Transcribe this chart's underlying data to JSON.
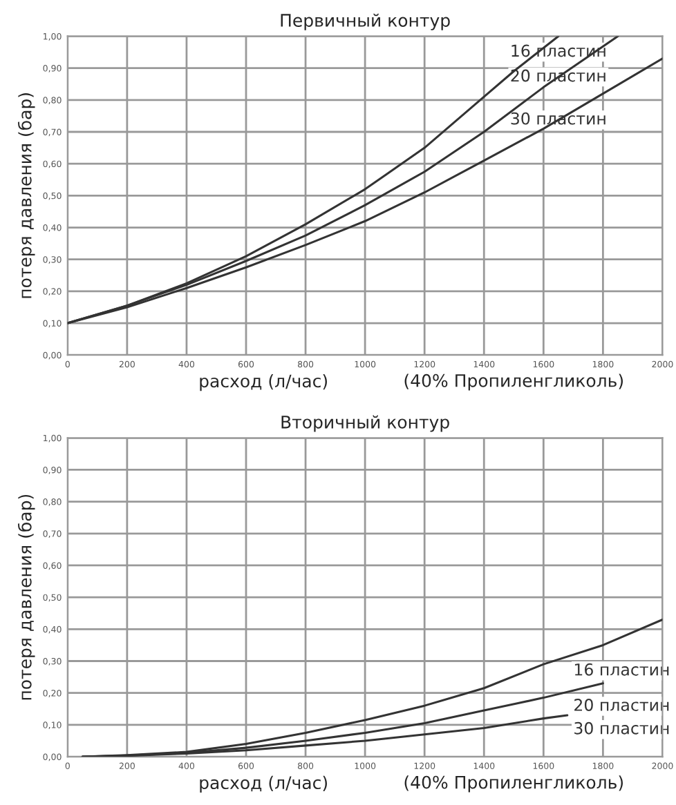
{
  "chart_data": [
    {
      "type": "line",
      "title": "Первичный контур",
      "xlabel": "расход (л/час)",
      "ylabel": "потеря давления (бар)",
      "annotations": [
        "(40% Пропиленгликоль)"
      ],
      "series": [
        {
          "name": "16 пластин",
          "color": "#333333",
          "x": [
            0,
            200,
            400,
            600,
            800,
            1000,
            1200,
            1400,
            1500,
            1650
          ],
          "values": [
            0.1,
            0.155,
            0.225,
            0.31,
            0.41,
            0.52,
            0.65,
            0.81,
            0.89,
            1.0
          ]
        },
        {
          "name": "20 пластин",
          "color": "#333333",
          "x": [
            0,
            200,
            400,
            600,
            800,
            1000,
            1200,
            1400,
            1600,
            1850
          ],
          "values": [
            0.1,
            0.155,
            0.22,
            0.295,
            0.375,
            0.47,
            0.575,
            0.7,
            0.84,
            1.0
          ]
        },
        {
          "name": "30 пластин",
          "color": "#333333",
          "x": [
            0,
            200,
            400,
            600,
            800,
            1000,
            1200,
            1400,
            1600,
            1800,
            2000
          ],
          "values": [
            0.1,
            0.15,
            0.21,
            0.275,
            0.345,
            0.42,
            0.51,
            0.61,
            0.71,
            0.82,
            0.93
          ]
        }
      ],
      "xlim": [
        0,
        2000
      ],
      "xticks": [
        0,
        200,
        400,
        600,
        800,
        1000,
        1200,
        1400,
        1600,
        1800,
        2000
      ],
      "ylim": [
        0,
        1
      ],
      "yticks": [
        {
          "value": 0,
          "label": "0,00"
        },
        {
          "value": 0.1,
          "label": "0,10"
        },
        {
          "value": 0.2,
          "label": "0,20"
        },
        {
          "value": 0.3,
          "label": "0,30"
        },
        {
          "value": 0.4,
          "label": "0,40"
        },
        {
          "value": 0.5,
          "label": "0,50"
        },
        {
          "value": 0.6,
          "label": "0,60"
        },
        {
          "value": 0.7,
          "label": "0,70"
        },
        {
          "value": 0.8,
          "label": "0,80"
        },
        {
          "value": 0.9,
          "label": "0,90"
        },
        {
          "value": 1,
          "label": "1,00"
        }
      ],
      "grid": true,
      "legend": false
    },
    {
      "type": "line",
      "title": "Вторичный контур",
      "xlabel": "расход (л/час)",
      "ylabel": "потеря давления (бар)",
      "annotations": [
        "(40% Пропиленгликоль)"
      ],
      "series": [
        {
          "name": "16 пластин",
          "color": "#333333",
          "x": [
            50,
            200,
            400,
            600,
            800,
            1000,
            1200,
            1400,
            1600,
            1800,
            2000
          ],
          "values": [
            0,
            0.005,
            0.015,
            0.04,
            0.075,
            0.115,
            0.16,
            0.215,
            0.29,
            0.35,
            0.43
          ]
        },
        {
          "name": "20 пластин",
          "color": "#333333",
          "x": [
            50,
            200,
            400,
            600,
            800,
            1000,
            1200,
            1400,
            1600,
            1800
          ],
          "values": [
            0,
            0.004,
            0.012,
            0.028,
            0.05,
            0.075,
            0.105,
            0.145,
            0.185,
            0.23
          ]
        },
        {
          "name": "30 пластин",
          "color": "#333333",
          "x": [
            50,
            200,
            400,
            600,
            800,
            1000,
            1200,
            1400,
            1600,
            1680
          ],
          "values": [
            0,
            0.003,
            0.01,
            0.02,
            0.035,
            0.05,
            0.07,
            0.09,
            0.12,
            0.13
          ]
        }
      ],
      "xlim": [
        0,
        2000
      ],
      "xticks": [
        0,
        200,
        400,
        600,
        800,
        1000,
        1200,
        1400,
        1600,
        1800,
        2000
      ],
      "ylim": [
        0,
        1
      ],
      "yticks": [
        {
          "value": 0,
          "label": "0,00"
        },
        {
          "value": 0.1,
          "label": "0,10"
        },
        {
          "value": 0.2,
          "label": "0,20"
        },
        {
          "value": 0.3,
          "label": "0,30"
        },
        {
          "value": 0.4,
          "label": "0,40"
        },
        {
          "value": 0.5,
          "label": "0,50"
        },
        {
          "value": 0.6,
          "label": "0,60"
        },
        {
          "value": 0.7,
          "label": "0,70"
        },
        {
          "value": 0.8,
          "label": "0,80"
        },
        {
          "value": 0.9,
          "label": "0,90"
        },
        {
          "value": 1,
          "label": "1,00"
        }
      ],
      "grid": true,
      "legend": false
    }
  ]
}
